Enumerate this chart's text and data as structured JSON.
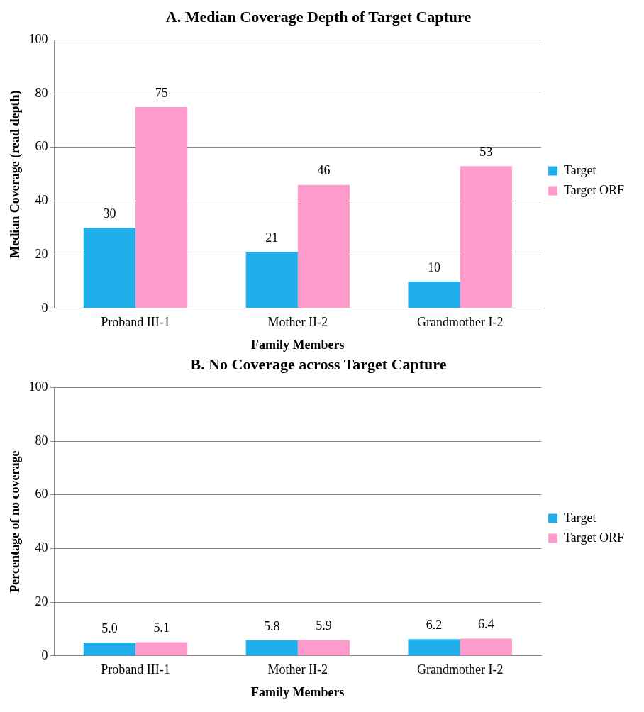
{
  "chart_data": [
    {
      "type": "bar",
      "title": "A. Median Coverage Depth of Target Capture",
      "xlabel": "Family Members",
      "ylabel": "Median Coverage (read depth)",
      "categories": [
        "Proband III-1",
        "Mother II-2",
        "Grandmother I-2"
      ],
      "series": [
        {
          "name": "Target",
          "color": "#1fb0ec",
          "values": [
            30,
            21,
            10
          ]
        },
        {
          "name": "Target ORF",
          "color": "#fd9ccc",
          "values": [
            75,
            46,
            53
          ]
        }
      ],
      "ylim": [
        0,
        100
      ],
      "yticks": [
        0,
        20,
        40,
        60,
        80,
        100
      ],
      "grid": "y",
      "legend": "right",
      "data_labels": true
    },
    {
      "type": "bar",
      "title": "B. No Coverage across Target Capture",
      "xlabel": "Family Members",
      "ylabel": "Percentage of no coverage",
      "categories": [
        "Proband III-1",
        "Mother II-2",
        "Grandmother I-2"
      ],
      "series": [
        {
          "name": "Target",
          "color": "#1fb0ec",
          "values": [
            5.0,
            5.8,
            6.2
          ],
          "value_labels": [
            "5.0",
            "5.8",
            "6.2"
          ]
        },
        {
          "name": "Target ORF",
          "color": "#fd9ccc",
          "values": [
            5.1,
            5.9,
            6.4
          ],
          "value_labels": [
            "5.1",
            "5.9",
            "6.4"
          ]
        }
      ],
      "ylim": [
        0,
        100
      ],
      "yticks": [
        0,
        20,
        40,
        60,
        80,
        100
      ],
      "grid": "y",
      "legend": "right"
    }
  ]
}
